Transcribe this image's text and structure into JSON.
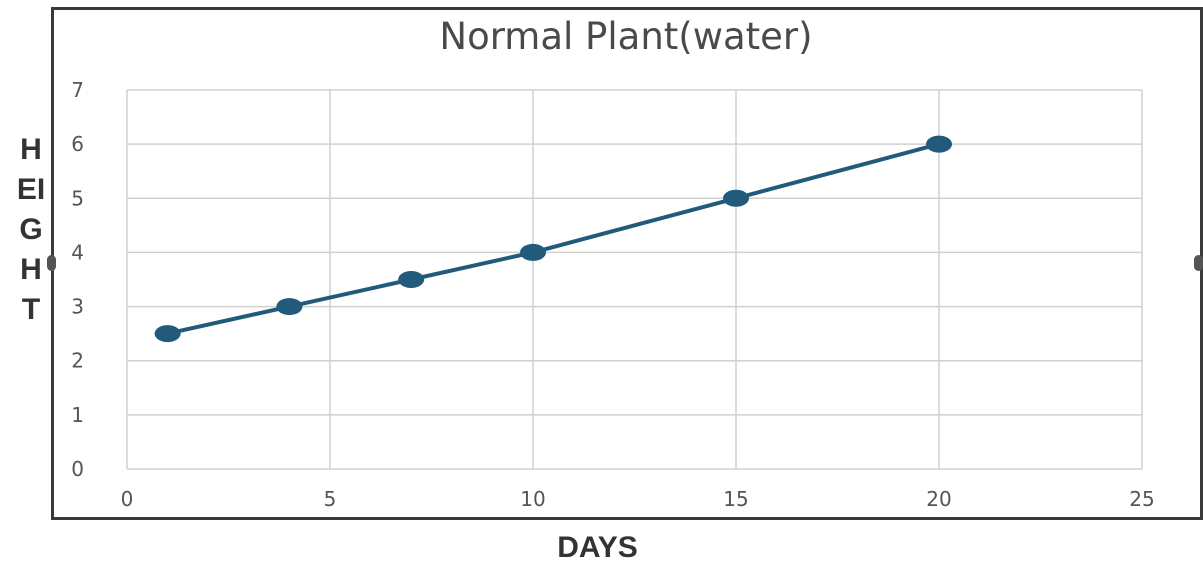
{
  "chart_data": {
    "type": "line",
    "title": "Normal Plant(water)",
    "xlabel": "DAYS",
    "ylabel": "HEIGHT",
    "xlim": [
      0,
      25
    ],
    "ylim": [
      0,
      7
    ],
    "xticks": [
      0,
      5,
      10,
      15,
      20,
      25
    ],
    "yticks": [
      0,
      1,
      2,
      3,
      4,
      5,
      6,
      7
    ],
    "grid": true,
    "legend": "none",
    "series": [
      {
        "x": [
          1,
          4,
          7,
          10,
          15,
          20
        ],
        "y": [
          2.5,
          3,
          3.5,
          4,
          5,
          6
        ],
        "color": "#215a7a"
      }
    ]
  },
  "colors": {
    "line": "#215a7a",
    "grid": "#d0d0d0",
    "frame": "#3a3a3a",
    "text": "#333333"
  }
}
